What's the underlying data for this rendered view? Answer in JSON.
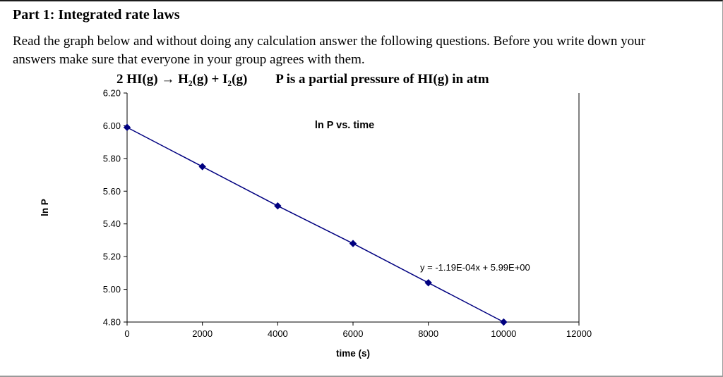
{
  "page": {
    "heading": "Part 1: Integrated rate laws",
    "instructions": "Read the graph below and without doing any calculation answer the following questions. Before you write down your answers make sure that everyone in your group agrees with them.",
    "equation": "2 HI(g) → H₂(g) + I₂(g)",
    "equation_note": "P is a partial pressure of HI(g) in atm"
  },
  "colors": {
    "series": "#000080",
    "axis": "#000000",
    "text": "#000000"
  },
  "chart_data": {
    "type": "line",
    "title": "ln P vs. time",
    "xlabel": "time (s)",
    "ylabel": "ln P",
    "x": [
      0,
      2000,
      4000,
      6000,
      8000,
      10000
    ],
    "y": [
      5.99,
      5.75,
      5.51,
      5.28,
      5.04,
      4.8
    ],
    "xlim": [
      0,
      12000
    ],
    "ylim": [
      4.8,
      6.2
    ],
    "x_ticks": [
      0,
      2000,
      4000,
      6000,
      8000,
      10000,
      12000
    ],
    "y_ticks": [
      4.8,
      5.0,
      5.2,
      5.4,
      5.6,
      5.8,
      6.0,
      6.2
    ],
    "annotation": "y = -1.19E-04x + 5.99E+00",
    "grid": false,
    "legend": null,
    "marker": "diamond"
  }
}
